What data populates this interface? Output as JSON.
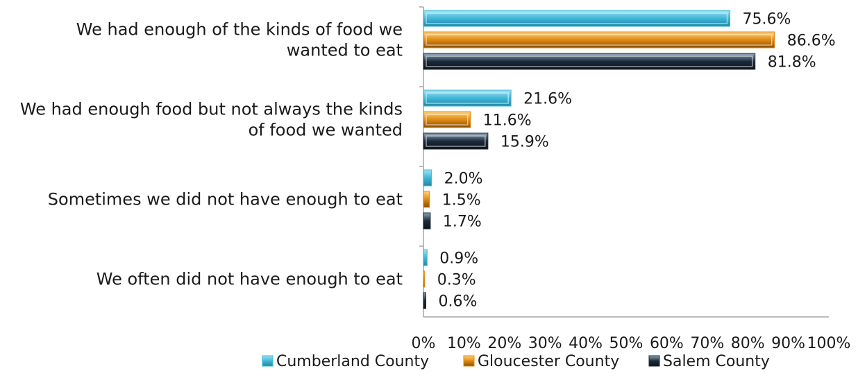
{
  "chart_data": {
    "type": "bar",
    "orientation": "horizontal",
    "categories": [
      [
        "We had enough of the kinds of food we",
        "wanted to eat"
      ],
      [
        "We had enough food but not always the kinds",
        "of food we wanted"
      ],
      [
        "Sometimes we did not have enough to eat"
      ],
      [
        "We often did not have enough to eat"
      ]
    ],
    "series": [
      {
        "name": "Cumberland County",
        "values": [
          75.6,
          21.6,
          2.0,
          0.9
        ],
        "color": "#3fb7d6"
      },
      {
        "name": "Gloucester County",
        "values": [
          86.6,
          11.6,
          1.5,
          0.3
        ],
        "color": "#e08a12"
      },
      {
        "name": "Salem County",
        "values": [
          81.8,
          15.9,
          1.7,
          0.6
        ],
        "color": "#1c2b3a"
      }
    ],
    "value_labels": [
      [
        "75.6%",
        "21.6%",
        "2.0%",
        "0.9%"
      ],
      [
        "86.6%",
        "11.6%",
        "1.5%",
        "0.3%"
      ],
      [
        "81.8%",
        "15.9%",
        "1.7%",
        "0.6%"
      ]
    ],
    "xlim": [
      0,
      100
    ],
    "xticks": [
      "0%",
      "10%",
      "20%",
      "30%",
      "40%",
      "50%",
      "60%",
      "70%",
      "80%",
      "90%",
      "100%"
    ],
    "grid": false,
    "legend_position": "bottom"
  }
}
